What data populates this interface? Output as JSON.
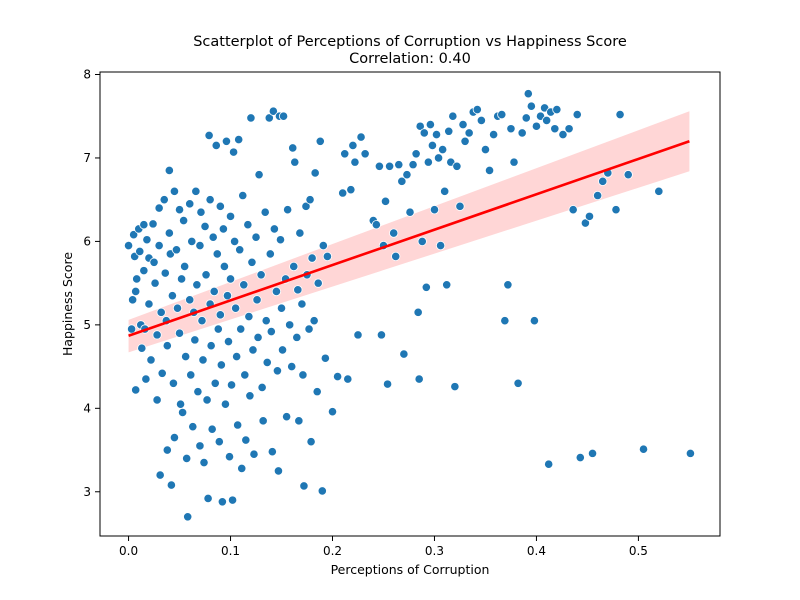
{
  "chart_data": {
    "type": "scatter",
    "title": "Scatterplot of Perceptions of Corruption vs Happiness Score",
    "subtitle": "Correlation: 0.40",
    "xlabel": "Perceptions of Corruption",
    "ylabel": "Happiness Score",
    "xlim": [
      -0.028,
      0.58
    ],
    "ylim": [
      2.47,
      8.03
    ],
    "xticks": [
      "0.0",
      "0.1",
      "0.2",
      "0.3",
      "0.4",
      "0.5"
    ],
    "yticks": [
      "3",
      "4",
      "5",
      "6",
      "7",
      "8"
    ],
    "grid": false,
    "legend": "none",
    "colors": {
      "points": "#1f77b4",
      "point_edge": "#ffffff",
      "regression_line": "#ff0000",
      "confidence_band": "#ffcccc"
    },
    "regression": {
      "x": [
        0.0,
        0.55
      ],
      "y": [
        4.87,
        7.2
      ],
      "ci_lower": [
        4.67,
        6.84
      ],
      "ci_upper": [
        5.06,
        7.56
      ]
    },
    "points": [
      [
        0.0,
        5.95
      ],
      [
        0.003,
        4.95
      ],
      [
        0.004,
        5.3
      ],
      [
        0.005,
        6.08
      ],
      [
        0.006,
        5.82
      ],
      [
        0.007,
        5.4
      ],
      [
        0.007,
        4.22
      ],
      [
        0.008,
        5.55
      ],
      [
        0.01,
        6.15
      ],
      [
        0.011,
        5.88
      ],
      [
        0.012,
        5.0
      ],
      [
        0.013,
        4.72
      ],
      [
        0.015,
        6.2
      ],
      [
        0.015,
        5.65
      ],
      [
        0.016,
        4.95
      ],
      [
        0.017,
        4.35
      ],
      [
        0.018,
        6.02
      ],
      [
        0.02,
        5.8
      ],
      [
        0.02,
        5.25
      ],
      [
        0.022,
        4.58
      ],
      [
        0.024,
        6.21
      ],
      [
        0.025,
        5.75
      ],
      [
        0.026,
        5.5
      ],
      [
        0.028,
        4.88
      ],
      [
        0.028,
        4.1
      ],
      [
        0.03,
        6.4
      ],
      [
        0.03,
        5.95
      ],
      [
        0.031,
        3.2
      ],
      [
        0.032,
        5.15
      ],
      [
        0.033,
        4.42
      ],
      [
        0.035,
        6.5
      ],
      [
        0.036,
        5.62
      ],
      [
        0.037,
        5.05
      ],
      [
        0.038,
        4.75
      ],
      [
        0.038,
        3.5
      ],
      [
        0.04,
        6.85
      ],
      [
        0.04,
        6.1
      ],
      [
        0.041,
        5.85
      ],
      [
        0.042,
        3.08
      ],
      [
        0.043,
        5.35
      ],
      [
        0.044,
        4.3
      ],
      [
        0.045,
        6.6
      ],
      [
        0.045,
        3.65
      ],
      [
        0.047,
        5.9
      ],
      [
        0.048,
        5.2
      ],
      [
        0.05,
        6.38
      ],
      [
        0.05,
        4.9
      ],
      [
        0.051,
        4.05
      ],
      [
        0.052,
        5.55
      ],
      [
        0.053,
        3.95
      ],
      [
        0.054,
        6.25
      ],
      [
        0.055,
        5.7
      ],
      [
        0.056,
        4.62
      ],
      [
        0.057,
        3.4
      ],
      [
        0.058,
        2.7
      ],
      [
        0.06,
        6.45
      ],
      [
        0.06,
        5.3
      ],
      [
        0.061,
        4.4
      ],
      [
        0.062,
        6.0
      ],
      [
        0.063,
        3.78
      ],
      [
        0.064,
        5.15
      ],
      [
        0.065,
        4.82
      ],
      [
        0.066,
        6.6
      ],
      [
        0.067,
        5.48
      ],
      [
        0.068,
        4.2
      ],
      [
        0.07,
        5.95
      ],
      [
        0.07,
        3.55
      ],
      [
        0.071,
        6.35
      ],
      [
        0.072,
        5.05
      ],
      [
        0.073,
        4.58
      ],
      [
        0.074,
        3.35
      ],
      [
        0.075,
        6.18
      ],
      [
        0.076,
        5.6
      ],
      [
        0.077,
        4.1
      ],
      [
        0.078,
        2.92
      ],
      [
        0.079,
        7.27
      ],
      [
        0.08,
        6.5
      ],
      [
        0.08,
        5.25
      ],
      [
        0.081,
        4.75
      ],
      [
        0.082,
        3.75
      ],
      [
        0.083,
        6.05
      ],
      [
        0.084,
        5.4
      ],
      [
        0.085,
        4.3
      ],
      [
        0.086,
        7.15
      ],
      [
        0.087,
        5.85
      ],
      [
        0.088,
        4.95
      ],
      [
        0.089,
        3.6
      ],
      [
        0.09,
        6.42
      ],
      [
        0.09,
        5.12
      ],
      [
        0.091,
        4.52
      ],
      [
        0.092,
        2.88
      ],
      [
        0.093,
        6.15
      ],
      [
        0.094,
        5.7
      ],
      [
        0.095,
        4.05
      ],
      [
        0.096,
        7.2
      ],
      [
        0.097,
        5.35
      ],
      [
        0.098,
        4.8
      ],
      [
        0.099,
        3.42
      ],
      [
        0.1,
        6.3
      ],
      [
        0.1,
        5.55
      ],
      [
        0.101,
        4.28
      ],
      [
        0.102,
        2.9
      ],
      [
        0.103,
        7.07
      ],
      [
        0.104,
        6.0
      ],
      [
        0.105,
        5.2
      ],
      [
        0.106,
        4.62
      ],
      [
        0.107,
        3.8
      ],
      [
        0.108,
        7.22
      ],
      [
        0.109,
        5.9
      ],
      [
        0.11,
        4.95
      ],
      [
        0.111,
        3.28
      ],
      [
        0.112,
        6.55
      ],
      [
        0.113,
        5.48
      ],
      [
        0.114,
        4.4
      ],
      [
        0.115,
        3.62
      ],
      [
        0.117,
        6.2
      ],
      [
        0.118,
        5.1
      ],
      [
        0.119,
        4.15
      ],
      [
        0.12,
        7.48
      ],
      [
        0.121,
        5.75
      ],
      [
        0.122,
        4.7
      ],
      [
        0.123,
        3.45
      ],
      [
        0.125,
        6.05
      ],
      [
        0.126,
        5.3
      ],
      [
        0.127,
        4.85
      ],
      [
        0.128,
        6.8
      ],
      [
        0.13,
        5.6
      ],
      [
        0.131,
        4.25
      ],
      [
        0.132,
        3.85
      ],
      [
        0.134,
        6.35
      ],
      [
        0.135,
        5.05
      ],
      [
        0.136,
        4.55
      ],
      [
        0.138,
        7.48
      ],
      [
        0.139,
        5.85
      ],
      [
        0.14,
        4.92
      ],
      [
        0.141,
        3.48
      ],
      [
        0.142,
        7.56
      ],
      [
        0.143,
        6.15
      ],
      [
        0.145,
        5.4
      ],
      [
        0.146,
        4.45
      ],
      [
        0.147,
        3.25
      ],
      [
        0.148,
        7.5
      ],
      [
        0.149,
        6.02
      ],
      [
        0.15,
        5.2
      ],
      [
        0.151,
        4.7
      ],
      [
        0.152,
        7.5
      ],
      [
        0.154,
        5.55
      ],
      [
        0.155,
        3.9
      ],
      [
        0.156,
        6.38
      ],
      [
        0.158,
        5.0
      ],
      [
        0.16,
        4.5
      ],
      [
        0.161,
        7.12
      ],
      [
        0.162,
        5.7
      ],
      [
        0.163,
        6.95
      ],
      [
        0.165,
        4.85
      ],
      [
        0.166,
        5.42
      ],
      [
        0.167,
        3.85
      ],
      [
        0.168,
        6.1
      ],
      [
        0.17,
        5.25
      ],
      [
        0.171,
        4.4
      ],
      [
        0.172,
        3.07
      ],
      [
        0.174,
        6.42
      ],
      [
        0.175,
        5.6
      ],
      [
        0.177,
        4.95
      ],
      [
        0.178,
        6.5
      ],
      [
        0.179,
        3.6
      ],
      [
        0.18,
        5.8
      ],
      [
        0.182,
        5.05
      ],
      [
        0.183,
        6.82
      ],
      [
        0.185,
        4.2
      ],
      [
        0.186,
        5.5
      ],
      [
        0.188,
        7.2
      ],
      [
        0.19,
        3.01
      ],
      [
        0.191,
        5.95
      ],
      [
        0.193,
        4.6
      ],
      [
        0.195,
        5.82
      ],
      [
        0.2,
        3.96
      ],
      [
        0.205,
        4.38
      ],
      [
        0.21,
        6.58
      ],
      [
        0.212,
        7.05
      ],
      [
        0.215,
        4.35
      ],
      [
        0.218,
        6.62
      ],
      [
        0.22,
        7.15
      ],
      [
        0.222,
        6.95
      ],
      [
        0.225,
        4.88
      ],
      [
        0.228,
        7.25
      ],
      [
        0.232,
        7.05
      ],
      [
        0.24,
        6.25
      ],
      [
        0.243,
        6.2
      ],
      [
        0.246,
        6.9
      ],
      [
        0.248,
        4.88
      ],
      [
        0.25,
        5.95
      ],
      [
        0.252,
        6.48
      ],
      [
        0.254,
        4.29
      ],
      [
        0.256,
        6.9
      ],
      [
        0.26,
        6.1
      ],
      [
        0.262,
        5.82
      ],
      [
        0.265,
        6.92
      ],
      [
        0.268,
        6.72
      ],
      [
        0.27,
        4.65
      ],
      [
        0.273,
        6.8
      ],
      [
        0.276,
        6.35
      ],
      [
        0.279,
        6.92
      ],
      [
        0.282,
        7.05
      ],
      [
        0.284,
        5.15
      ],
      [
        0.285,
        4.35
      ],
      [
        0.286,
        7.38
      ],
      [
        0.288,
        6.0
      ],
      [
        0.29,
        7.3
      ],
      [
        0.292,
        5.45
      ],
      [
        0.294,
        6.95
      ],
      [
        0.296,
        7.4
      ],
      [
        0.298,
        7.15
      ],
      [
        0.3,
        6.38
      ],
      [
        0.302,
        7.28
      ],
      [
        0.304,
        7.0
      ],
      [
        0.306,
        5.95
      ],
      [
        0.308,
        7.1
      ],
      [
        0.31,
        6.6
      ],
      [
        0.312,
        5.48
      ],
      [
        0.314,
        7.32
      ],
      [
        0.316,
        6.95
      ],
      [
        0.318,
        7.5
      ],
      [
        0.32,
        4.26
      ],
      [
        0.322,
        6.9
      ],
      [
        0.325,
        6.42
      ],
      [
        0.328,
        7.4
      ],
      [
        0.33,
        7.2
      ],
      [
        0.334,
        7.3
      ],
      [
        0.338,
        7.55
      ],
      [
        0.342,
        7.58
      ],
      [
        0.346,
        7.45
      ],
      [
        0.35,
        7.1
      ],
      [
        0.354,
        6.85
      ],
      [
        0.358,
        7.28
      ],
      [
        0.362,
        7.5
      ],
      [
        0.366,
        7.52
      ],
      [
        0.369,
        5.05
      ],
      [
        0.372,
        5.48
      ],
      [
        0.375,
        7.35
      ],
      [
        0.378,
        6.95
      ],
      [
        0.382,
        4.3
      ],
      [
        0.386,
        7.3
      ],
      [
        0.39,
        7.48
      ],
      [
        0.392,
        7.77
      ],
      [
        0.395,
        7.62
      ],
      [
        0.398,
        5.05
      ],
      [
        0.4,
        7.38
      ],
      [
        0.404,
        7.5
      ],
      [
        0.408,
        7.6
      ],
      [
        0.41,
        7.45
      ],
      [
        0.412,
        3.33
      ],
      [
        0.414,
        7.55
      ],
      [
        0.418,
        7.35
      ],
      [
        0.42,
        7.58
      ],
      [
        0.426,
        7.28
      ],
      [
        0.432,
        7.35
      ],
      [
        0.436,
        6.38
      ],
      [
        0.44,
        7.52
      ],
      [
        0.443,
        3.41
      ],
      [
        0.448,
        6.22
      ],
      [
        0.452,
        6.3
      ],
      [
        0.455,
        3.46
      ],
      [
        0.46,
        6.55
      ],
      [
        0.465,
        6.72
      ],
      [
        0.47,
        6.82
      ],
      [
        0.478,
        6.38
      ],
      [
        0.482,
        7.52
      ],
      [
        0.49,
        6.8
      ],
      [
        0.505,
        3.51
      ],
      [
        0.52,
        6.6
      ],
      [
        0.551,
        3.46
      ]
    ]
  }
}
